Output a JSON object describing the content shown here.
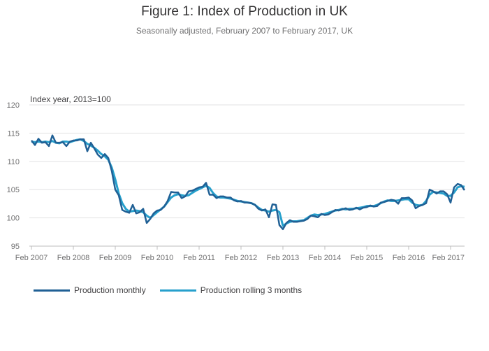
{
  "header": {
    "title": "Figure 1: Index of Production in UK",
    "subtitle": "Seasonally adjusted, February 2007 to February 2017, UK"
  },
  "chart_data": {
    "type": "line",
    "title": "Figure 1: Index of Production in UK",
    "subtitle": "Seasonally adjusted, February 2007 to February 2017, UK",
    "ylabel": "Index year, 2013=100",
    "xlabel": "",
    "ylim": [
      95,
      120
    ],
    "yticks": [
      95,
      100,
      105,
      110,
      115,
      120
    ],
    "x_start": "Feb 2007",
    "x_end": "Feb 2017",
    "xticks": [
      "Feb 2007",
      "Feb 2008",
      "Feb 2009",
      "Feb 2010",
      "Feb 2011",
      "Feb 2012",
      "Feb 2013",
      "Feb 2014",
      "Feb 2015",
      "Feb 2016",
      "Feb 2017"
    ],
    "grid": "horizontal",
    "legend_position": "bottom-left",
    "series": [
      {
        "name": "Production monthly",
        "color": "#206095",
        "values": [
          113.7,
          112.9,
          114.0,
          113.3,
          113.4,
          112.7,
          114.6,
          113.3,
          113.3,
          113.4,
          112.7,
          113.5,
          113.7,
          113.7,
          113.9,
          113.9,
          111.8,
          113.3,
          112.3,
          111.2,
          110.6,
          111.3,
          110.6,
          108.3,
          105.0,
          104.0,
          101.4,
          101.1,
          100.9,
          102.3,
          100.8,
          101.0,
          101.6,
          99.1,
          99.8,
          100.8,
          101.3,
          101.4,
          102.0,
          103.0,
          104.6,
          104.5,
          104.5,
          103.5,
          103.8,
          104.7,
          104.8,
          105.1,
          105.4,
          105.5,
          106.2,
          104.1,
          104.1,
          103.5,
          103.8,
          103.8,
          103.6,
          103.6,
          103.1,
          102.9,
          103.0,
          102.7,
          102.7,
          102.6,
          102.3,
          101.6,
          101.3,
          101.5,
          100.1,
          102.4,
          102.3,
          98.7,
          98.0,
          99.1,
          99.6,
          99.3,
          99.3,
          99.4,
          99.5,
          99.8,
          100.4,
          100.3,
          100.1,
          100.7,
          100.5,
          100.6,
          101.0,
          101.4,
          101.3,
          101.5,
          101.7,
          101.4,
          101.5,
          101.8,
          101.5,
          101.8,
          101.9,
          102.2,
          102.0,
          102.1,
          102.7,
          102.8,
          103.0,
          103.2,
          103.1,
          102.5,
          103.5,
          103.5,
          103.6,
          103.1,
          101.7,
          102.1,
          102.3,
          102.6,
          105.0,
          104.7,
          104.3,
          104.7,
          104.7,
          104.2,
          102.7,
          105.4,
          106.0,
          105.8,
          104.9
        ]
      },
      {
        "name": "Production rolling 3 months",
        "color": "#27a0cc",
        "values": [
          113.5,
          113.4,
          113.5,
          113.4,
          113.5,
          113.4,
          113.6,
          113.3,
          113.2,
          113.5,
          113.5,
          113.4,
          113.6,
          113.8,
          113.9,
          113.6,
          113.1,
          112.8,
          112.4,
          111.9,
          111.3,
          110.9,
          110.3,
          108.9,
          106.8,
          104.3,
          102.6,
          101.6,
          101.1,
          101.2,
          101.3,
          101.2,
          101.0,
          100.4,
          100.0,
          100.5,
          101.0,
          101.5,
          102.0,
          102.8,
          103.6,
          104.0,
          104.2,
          104.0,
          103.9,
          104.0,
          104.4,
          104.8,
          105.1,
          105.4,
          105.7,
          105.3,
          104.4,
          103.8,
          103.6,
          103.6,
          103.5,
          103.4,
          103.2,
          103.0,
          102.9,
          102.8,
          102.7,
          102.6,
          102.3,
          101.8,
          101.4,
          101.3,
          101.1,
          101.3,
          101.4,
          101.0,
          98.6,
          99.0,
          99.3,
          99.4,
          99.4,
          99.5,
          99.6,
          100.0,
          100.4,
          100.6,
          100.5,
          100.6,
          100.7,
          100.9,
          101.1,
          101.3,
          101.4,
          101.6,
          101.5,
          101.6,
          101.6,
          101.7,
          101.8,
          101.9,
          102.1,
          102.1,
          102.1,
          102.3,
          102.6,
          102.9,
          103.1,
          103.0,
          103.0,
          103.1,
          103.2,
          103.3,
          103.3,
          102.7,
          102.3,
          102.2,
          102.3,
          103.0,
          104.1,
          104.6,
          104.5,
          104.4,
          104.3,
          103.9,
          103.9,
          104.5,
          105.4,
          105.6,
          105.5
        ]
      }
    ]
  }
}
